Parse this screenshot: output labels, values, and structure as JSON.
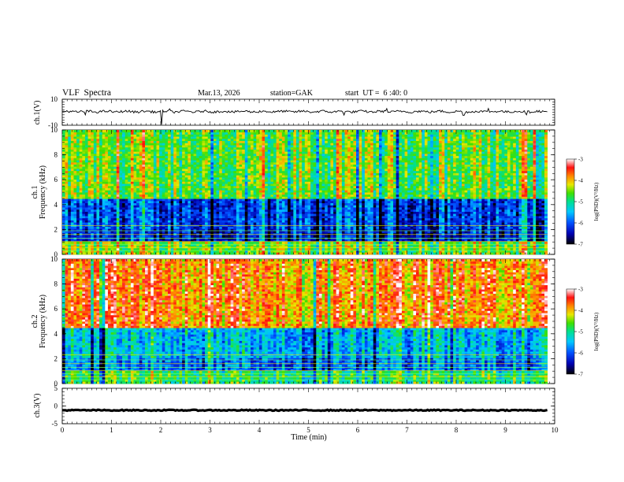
{
  "header": {
    "title": "VLF  Spectra",
    "date": "Mar.13, 2026",
    "station": "station=GAK",
    "start": "start  UT =  6 :40: 0"
  },
  "chart_data": [
    {
      "type": "line",
      "panel": "ch1-waveform",
      "ylabel": "ch.1(V)",
      "ylim": [
        -10,
        10
      ],
      "yticks": [
        "10",
        "-10"
      ],
      "xlim": [
        0,
        10
      ],
      "x_extent": [
        0,
        9.85
      ],
      "baseline": 0.5,
      "noise_amplitude": 1.5,
      "spikes": [
        {
          "x": 0.46,
          "y": -2.0
        },
        {
          "x": 2.02,
          "y": -9.5
        },
        {
          "x": 2.18,
          "y": 2.6
        },
        {
          "x": 5.72,
          "y": -2.2
        },
        {
          "x": 6.58,
          "y": 2.8
        },
        {
          "x": 8.15,
          "y": -2.4
        },
        {
          "x": 8.66,
          "y": 2.9
        },
        {
          "x": 9.42,
          "y": -2.0
        }
      ]
    },
    {
      "type": "heatmap",
      "panel": "ch1-spectrogram",
      "ylabel": "ch.1\nFrequency (kHz)",
      "ylim": [
        0,
        10
      ],
      "yticks": [
        "0",
        "2",
        "4",
        "6",
        "8",
        "10"
      ],
      "xlim": [
        0,
        10
      ],
      "x_extent": [
        0,
        9.85
      ],
      "colorbar": {
        "label": "log(PSD)(V²/Hz)",
        "range": [
          -7,
          -3
        ],
        "ticks": [
          "-3",
          "-4",
          "-5",
          "-6",
          "-7"
        ]
      },
      "bands": [
        {
          "f": [
            4.5,
            10.0
          ],
          "level": -4.6
        },
        {
          "f": [
            2.0,
            4.5
          ],
          "level": -6.1
        },
        {
          "f": [
            1.0,
            2.0
          ],
          "level": -6.3
        },
        {
          "f": [
            0.0,
            1.0
          ],
          "level": -4.5
        }
      ]
    },
    {
      "type": "heatmap",
      "panel": "ch2-spectrogram",
      "ylabel": "ch.2\nFrequency (kHz)",
      "ylim": [
        0,
        10
      ],
      "yticks": [
        "0",
        "2",
        "4",
        "6",
        "8",
        "10"
      ],
      "xlim": [
        0,
        10
      ],
      "x_extent": [
        0,
        9.85
      ],
      "colorbar": {
        "label": "log(PSD)(V²/Hz)",
        "range": [
          -7,
          -3
        ],
        "ticks": [
          "-3",
          "-4",
          "-5",
          "-6",
          "-7"
        ]
      },
      "bands": [
        {
          "f": [
            4.5,
            10.0
          ],
          "level": -3.8
        },
        {
          "f": [
            2.0,
            4.5
          ],
          "level": -5.5
        },
        {
          "f": [
            1.0,
            2.0
          ],
          "level": -5.9
        },
        {
          "f": [
            0.0,
            1.0
          ],
          "level": -4.9
        }
      ]
    },
    {
      "type": "line",
      "panel": "ch3-waveform",
      "ylabel": "ch.3(V)",
      "ylim": [
        -5,
        5
      ],
      "yticks": [
        "5",
        "0",
        "-5"
      ],
      "xlim": [
        0,
        10
      ],
      "x_extent": [
        0,
        9.85
      ],
      "baseline": -1.2,
      "noise_amplitude": 0.15
    }
  ],
  "xaxis": {
    "label": "Time  (min)",
    "ticks": [
      "0",
      "1",
      "2",
      "3",
      "4",
      "5",
      "6",
      "7",
      "8",
      "9",
      "10"
    ]
  }
}
